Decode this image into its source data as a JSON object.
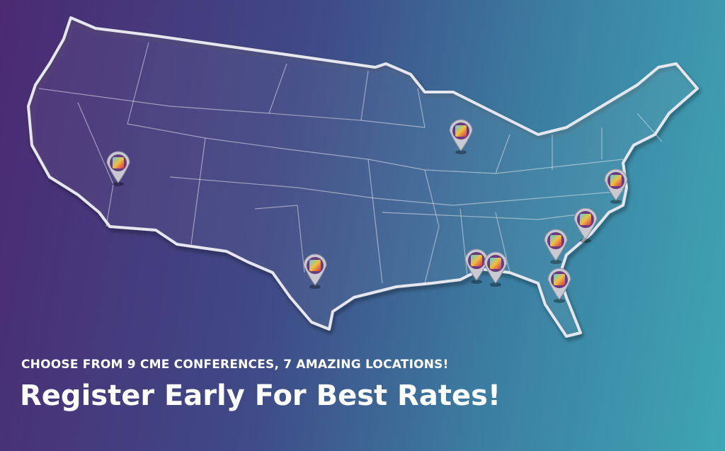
{
  "banner": {
    "subtitle": "CHOOSE FROM 9 CME CONFERENCES, 7 AMAZING LOCATIONS!",
    "title": "Register Early For Best Rates!"
  }
}
